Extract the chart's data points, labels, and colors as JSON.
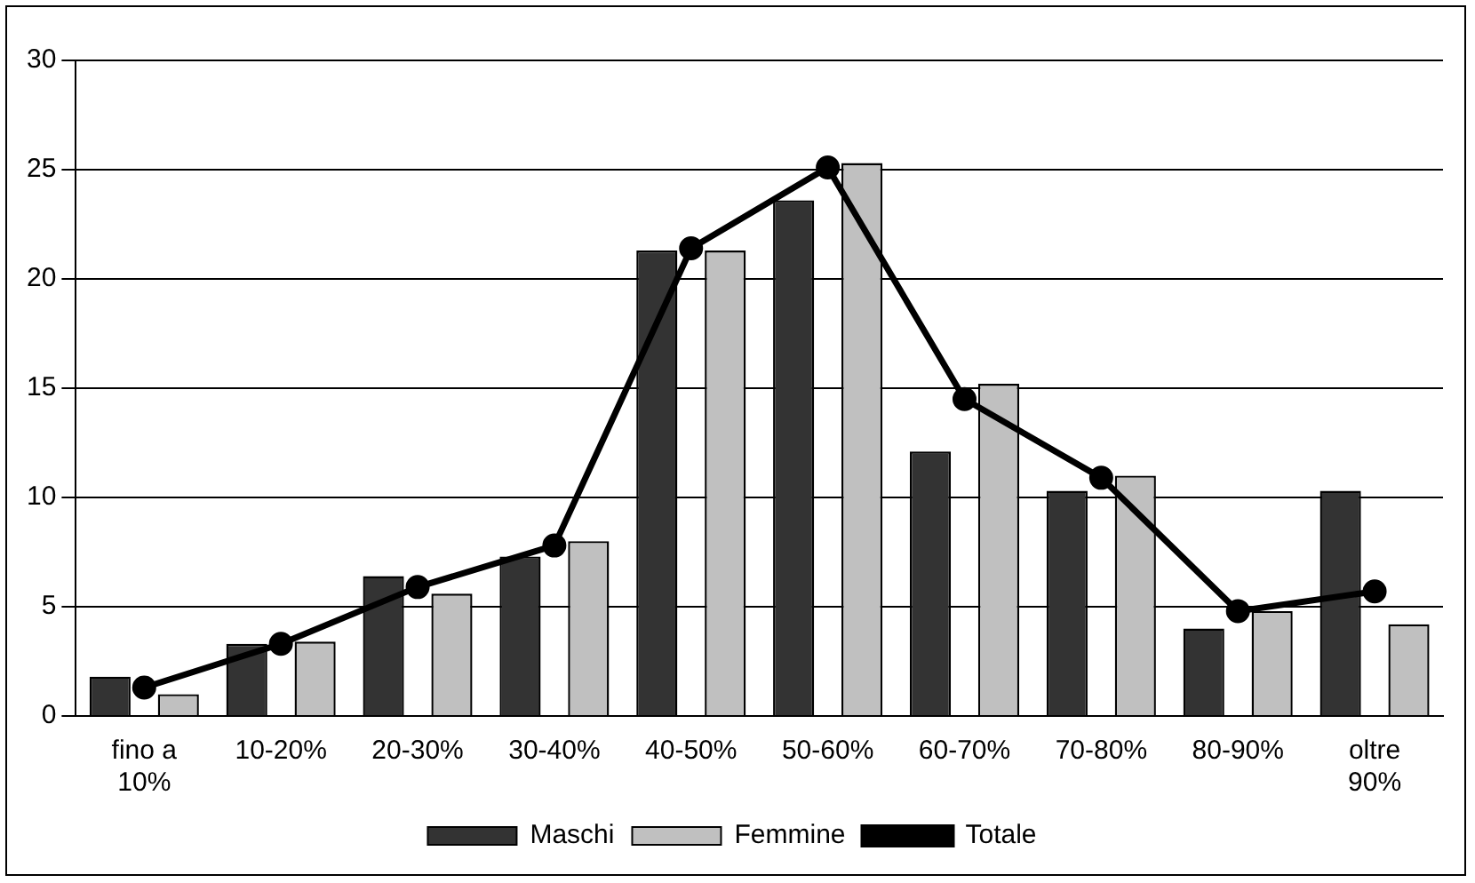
{
  "chart_data": {
    "type": "bar",
    "categories": [
      "fino a\n10%",
      "10-20%",
      "20-30%",
      "30-40%",
      "40-50%",
      "50-60%",
      "60-70%",
      "70-80%",
      "80-90%",
      "oltre\n90%"
    ],
    "series": [
      {
        "name": "Maschi",
        "color": "#333333",
        "values": [
          1.8,
          3.3,
          6.4,
          7.3,
          21.3,
          23.6,
          12.1,
          10.3,
          4.0,
          10.3
        ]
      },
      {
        "name": "Femmine",
        "color": "#c0c0c0",
        "values": [
          1.0,
          3.4,
          5.6,
          8.0,
          21.3,
          25.3,
          15.2,
          11.0,
          4.8,
          4.2
        ]
      },
      {
        "name": "Totale",
        "type": "line",
        "color": "#000000",
        "marker": "circle",
        "values": [
          1.3,
          3.3,
          5.9,
          7.8,
          21.4,
          25.1,
          14.5,
          10.9,
          4.8,
          5.7
        ]
      }
    ],
    "ylim": [
      0,
      30
    ],
    "yticks": [
      0,
      5,
      10,
      15,
      20,
      25,
      30
    ],
    "grid": "y",
    "legend": "bottom"
  }
}
